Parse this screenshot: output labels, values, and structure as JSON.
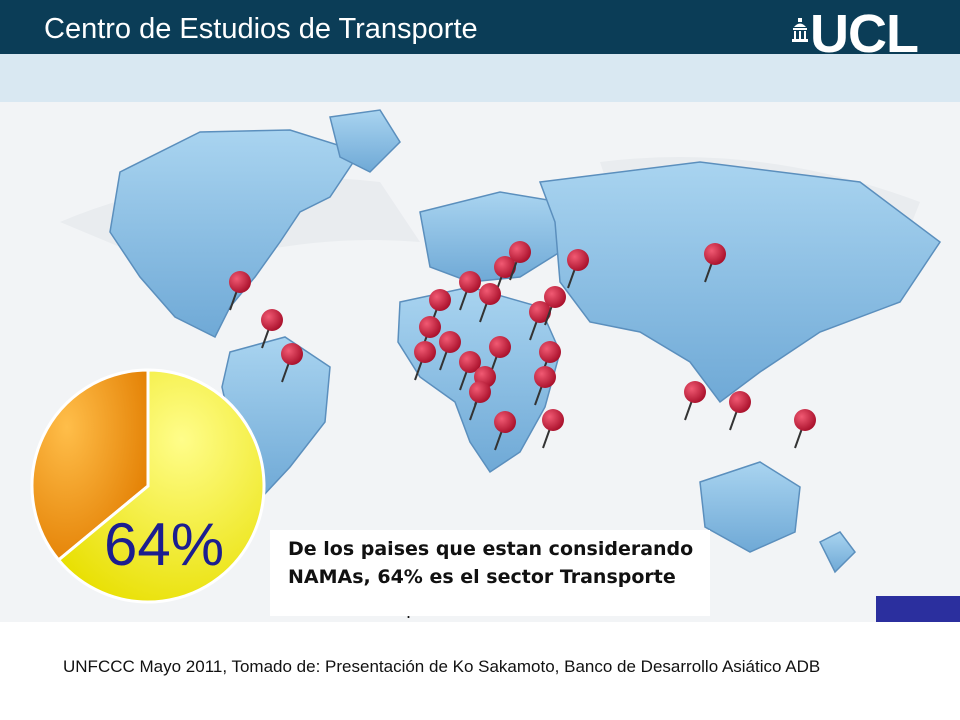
{
  "header": {
    "title": "Centro de Estudios de Transporte",
    "logo_text": "UCL"
  },
  "colors": {
    "header_bg": "#0b3d57",
    "map_land": "#8ec3e6",
    "pin": "#d4163a",
    "pie_main": "#f7f200",
    "pie_rest": "#f59a12",
    "pct_text": "#1c1e8f"
  },
  "highlight": {
    "value_percent": 64,
    "value_label": "64%"
  },
  "caption": {
    "line1": "De los paises que estan considerando",
    "line2": "NAMAs, 64% es el sector Transporte",
    "trailing": "."
  },
  "footer": {
    "text": "UNFCCC Mayo 2011, Tomado de: Presentación de Ko Sakamoto, Banco de Desarrollo Asiático ADB"
  }
}
